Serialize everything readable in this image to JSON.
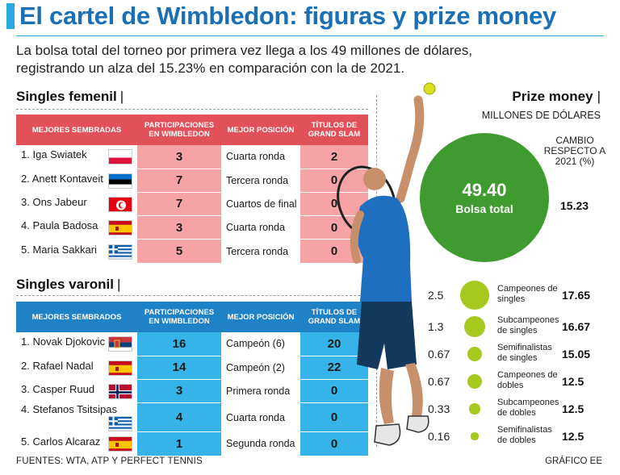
{
  "header": {
    "title": "El cartel de Wimbledon: figuras y prize money",
    "subtitle": "La bolsa total del torneo por primera vez llega a los 49 millones de dólares, registrando un alza del 15.23% en comparación con la de 2021."
  },
  "colors": {
    "accent": "#2aa8e0",
    "title": "#1a6fb5",
    "female": "#e2505a",
    "female_light": "#f6a3a6",
    "male": "#1f82c6",
    "male_light": "#36b3e8",
    "big_circle": "#3f9a2f",
    "small_circle": "#a7c81e"
  },
  "female": {
    "section_title": "Singles femenil",
    "separator": "|",
    "columns": [
      "MEJORES SEMBRADAS",
      "PARTICIPACIONES EN WIMBLEDON",
      "MEJOR POSICIÓN",
      "TÍTULOS DE GRAND SLAM"
    ],
    "rows": [
      {
        "player": "1. Iga Swiatek",
        "flag": "poland-flag-icon",
        "participations": "3",
        "best": "Cuarta ronda",
        "titles": "2"
      },
      {
        "player": "2. Anett Kontaveit",
        "flag": "estonia-flag-icon",
        "participations": "7",
        "best": "Tercera ronda",
        "titles": "0"
      },
      {
        "player": "3. Ons Jabeur",
        "flag": "tunisia-flag-icon",
        "participations": "7",
        "best": "Cuartos de final",
        "titles": "0"
      },
      {
        "player": "4. Paula Badosa",
        "flag": "spain-flag-icon",
        "participations": "3",
        "best": "Cuarta ronda",
        "titles": "0"
      },
      {
        "player": "5. Maria Sakkari",
        "flag": "greece-flag-icon",
        "participations": "5",
        "best": "Tercera ronda",
        "titles": "0"
      }
    ]
  },
  "male": {
    "section_title": "Singles varonil",
    "separator": "|",
    "columns": [
      "MEJORES SEMBRADOS",
      "PARTICIPACIONES EN WIMBLEDON",
      "MEJOR POSICIÓN",
      "TÍTULOS DE GRAND SLAM"
    ],
    "rows": [
      {
        "player": "1. Novak Djokovic",
        "flag": "serbia-flag-icon",
        "participations": "16",
        "best": "Campeón (6)",
        "titles": "20"
      },
      {
        "player": "2. Rafael Nadal",
        "flag": "spain-flag-icon",
        "participations": "14",
        "best": "Campeón (2)",
        "titles": "22"
      },
      {
        "player": "3. Casper Ruud",
        "flag": "norway-flag-icon",
        "participations": "3",
        "best": "Primera ronda",
        "titles": "0"
      },
      {
        "player": "4. Stefanos Tsitsipas",
        "flag": "greece-flag-icon",
        "participations": "4",
        "best": "Cuarta ronda",
        "titles": "0"
      },
      {
        "player": "5. Carlos Alcaraz",
        "flag": "spain-flag-icon",
        "participations": "1",
        "best": "Segunda ronda",
        "titles": "0"
      }
    ]
  },
  "prize": {
    "title": "Prize money",
    "separator": "|",
    "unit": "MILLONES DE DÓLARES",
    "change_header": "CAMBIO RESPECTO A 2021 (%)",
    "total_value": "49.40",
    "total_label": "Bolsa total",
    "total_change": "15.23",
    "items": [
      {
        "value": "2.5",
        "label": "Campeones de singles",
        "change": "17.65"
      },
      {
        "value": "1.3",
        "label": "Subcampeones de singles",
        "change": "16.67"
      },
      {
        "value": "0.67",
        "label": "Semifinalistas de singles",
        "change": "15.05"
      },
      {
        "value": "0.67",
        "label": "Campeones de dobles",
        "change": "12.5"
      },
      {
        "value": "0.33",
        "label": "Subcampeones de dobles",
        "change": "12.5"
      },
      {
        "value": "0.16",
        "label": "Semifinalistas de dobles",
        "change": "12.5"
      }
    ]
  },
  "footer": {
    "sources": "FUENTES: WTA, ATP Y PERFECT TENNIS",
    "credit": "GRÁFICO EE"
  }
}
